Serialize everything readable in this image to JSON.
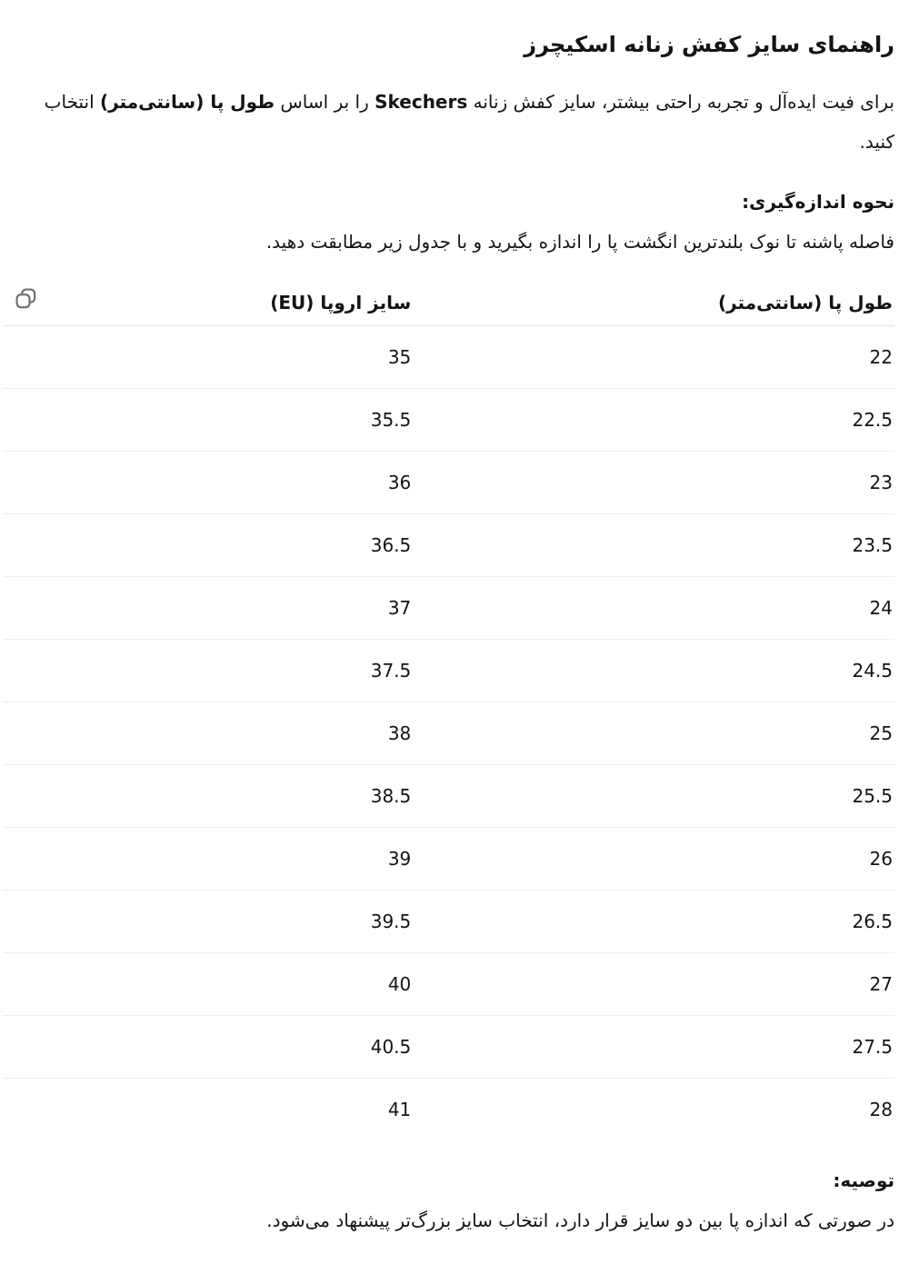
{
  "page": {
    "language": "fa",
    "direction": "rtl",
    "colors": {
      "background": "#ffffff",
      "text": "#141414",
      "header_divider": "#e3e3e3",
      "row_divider": "#efefef",
      "icon_stroke": "#6e6e6e"
    }
  },
  "title": "راهنمای سایز کفش زنانه اسکیچرز",
  "intro": {
    "text_before_brand": "برای فیت ایده‌آل و تجربه راحتی بیشتر، سایز کفش زنانه ",
    "brand_bold": "Skechers",
    "text_middle": " را بر اساس ",
    "foot_length_bold": "طول پا (سانتی‌متر)",
    "text_after": " انتخاب کنید."
  },
  "measurement": {
    "heading": "نحوه اندازه‌گیری:",
    "body": "فاصله پاشنه تا نوک بلندترین انگشت پا را اندازه بگیرید و با جدول زیر مطابقت دهید."
  },
  "size_table": {
    "copy_button_icon": "copy-icon",
    "headers": {
      "foot_length": "طول پا (سانتی‌متر)",
      "eu_size": "سایز اروپا (EU)"
    },
    "rows": [
      {
        "foot_length": "22",
        "eu_size": "35"
      },
      {
        "foot_length": "22.5",
        "eu_size": "35.5"
      },
      {
        "foot_length": "23",
        "eu_size": "36"
      },
      {
        "foot_length": "23.5",
        "eu_size": "36.5"
      },
      {
        "foot_length": "24",
        "eu_size": "37"
      },
      {
        "foot_length": "24.5",
        "eu_size": "37.5"
      },
      {
        "foot_length": "25",
        "eu_size": "38"
      },
      {
        "foot_length": "25.5",
        "eu_size": "38.5"
      },
      {
        "foot_length": "26",
        "eu_size": "39"
      },
      {
        "foot_length": "26.5",
        "eu_size": "39.5"
      },
      {
        "foot_length": "27",
        "eu_size": "40"
      },
      {
        "foot_length": "27.5",
        "eu_size": "40.5"
      },
      {
        "foot_length": "28",
        "eu_size": "41"
      }
    ]
  },
  "recommendation": {
    "heading": "توصیه:",
    "body": "در صورتی که اندازه پا بین دو سایز قرار دارد، انتخاب سایز بزرگ‌تر پیشنهاد می‌شود."
  }
}
